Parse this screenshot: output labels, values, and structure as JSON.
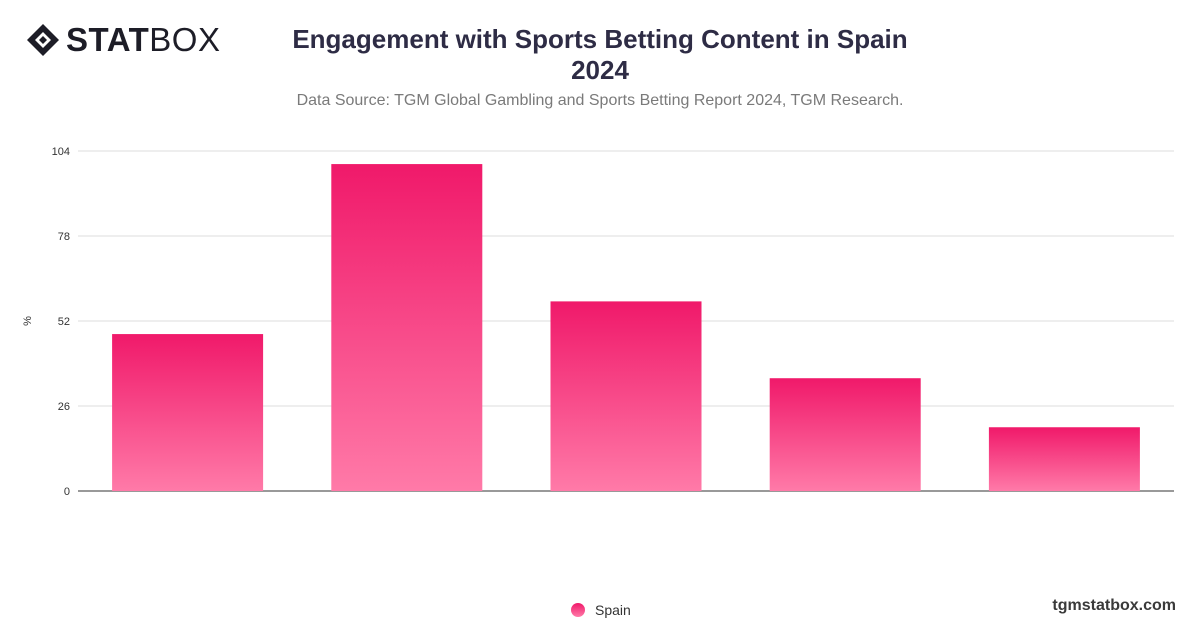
{
  "brand": {
    "logo_text_bold": "STAT",
    "logo_text_light": "BOX"
  },
  "header": {
    "title_line1": "Engagement with Sports Betting Content in Spain",
    "title_line2": "2024",
    "subtitle": "Data Source: TGM Global Gambling and Sports Betting Report 2024, TGM Research."
  },
  "footer": {
    "site": "tgmstatbox.com"
  },
  "colors": {
    "bar_top": "#f0196a",
    "bar_bottom": "#ff7aa8",
    "grid": "#dddddd",
    "axis": "#333333"
  },
  "chart_data": {
    "type": "bar",
    "categories": [
      "",
      "",
      "",
      "",
      ""
    ],
    "series": [
      {
        "name": "Spain",
        "values": [
          48,
          100,
          58,
          34.5,
          19.5
        ]
      }
    ],
    "title": "Engagement with Sports Betting Content in Spain 2024",
    "xlabel": "",
    "ylabel": "%",
    "ylim": [
      0,
      104
    ],
    "yticks": [
      0,
      26,
      52,
      78,
      104
    ],
    "grid": true,
    "legend": "bottom-center"
  }
}
